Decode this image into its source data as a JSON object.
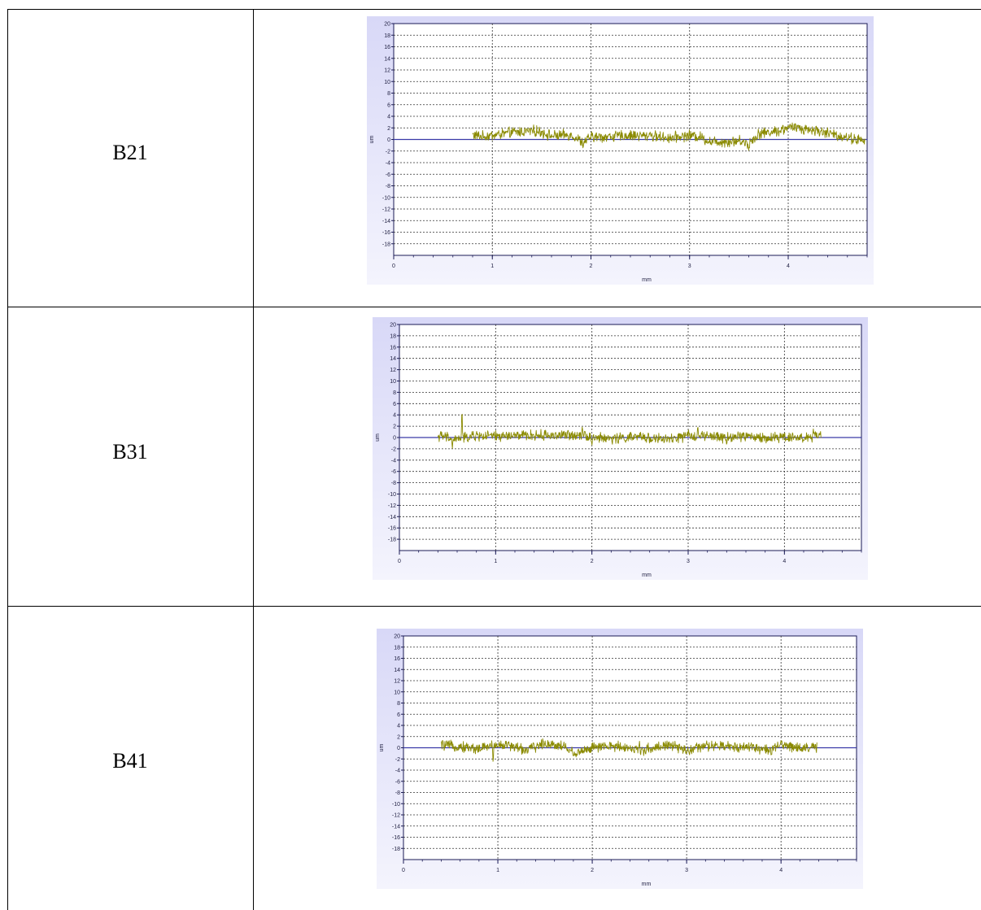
{
  "rows": [
    {
      "label": "B21",
      "chart": {
        "type": "line",
        "xlabel": "mm",
        "ylabel": "um",
        "xlim": [
          0,
          4.8
        ],
        "ylim": [
          -20,
          20
        ],
        "x_ticks": [
          0,
          1,
          2,
          3,
          4
        ],
        "y_ticks": [
          20,
          18,
          16,
          14,
          12,
          10,
          8,
          6,
          4,
          2,
          0,
          -2,
          -4,
          -6,
          -8,
          -10,
          -12,
          -14,
          -16,
          -18
        ],
        "grid": true,
        "reference_line": 0,
        "series": [
          {
            "color": "#8a8a00",
            "x_start": 0.8,
            "x_end": 4.78,
            "anchors": [
              [
                0.8,
                0.8
              ],
              [
                0.9,
                0.5
              ],
              [
                1.0,
                0.7
              ],
              [
                1.2,
                1.2
              ],
              [
                1.4,
                1.5
              ],
              [
                1.5,
                1.3
              ],
              [
                1.6,
                0.6
              ],
              [
                1.8,
                0.8
              ],
              [
                1.92,
                -0.5
              ],
              [
                2.0,
                0.4
              ],
              [
                2.2,
                0.5
              ],
              [
                2.4,
                0.7
              ],
              [
                2.6,
                0.6
              ],
              [
                2.8,
                0.3
              ],
              [
                3.0,
                0.7
              ],
              [
                3.1,
                0.5
              ],
              [
                3.2,
                -0.3
              ],
              [
                3.4,
                -0.4
              ],
              [
                3.5,
                -0.2
              ],
              [
                3.6,
                -0.7
              ],
              [
                3.7,
                1.0
              ],
              [
                3.9,
                1.5
              ],
              [
                4.0,
                2.0
              ],
              [
                4.1,
                2.0
              ],
              [
                4.3,
                1.5
              ],
              [
                4.5,
                0.7
              ],
              [
                4.7,
                0.0
              ],
              [
                4.78,
                -0.4
              ]
            ],
            "spikes": [
              [
                1.92,
                -1.6
              ],
              [
                2.6,
                1.3
              ],
              [
                3.6,
                -2.0
              ],
              [
                4.0,
                2.5
              ],
              [
                4.1,
                2.6
              ]
            ]
          }
        ]
      }
    },
    {
      "label": "B31",
      "chart": {
        "type": "line",
        "xlabel": "mm",
        "ylabel": "um",
        "xlim": [
          0,
          4.8
        ],
        "ylim": [
          -20,
          20
        ],
        "x_ticks": [
          0,
          1,
          2,
          3,
          4
        ],
        "y_ticks": [
          20,
          18,
          16,
          14,
          12,
          10,
          8,
          6,
          4,
          2,
          0,
          -2,
          -4,
          -6,
          -8,
          -10,
          -12,
          -14,
          -16,
          -18
        ],
        "grid": true,
        "reference_line": 0,
        "series": [
          {
            "color": "#8a8a00",
            "x_start": 0.4,
            "x_end": 4.38,
            "anchors": [
              [
                0.4,
                0.3
              ],
              [
                0.6,
                -0.3
              ],
              [
                0.8,
                0.3
              ],
              [
                1.0,
                0.2
              ],
              [
                1.2,
                0.3
              ],
              [
                1.5,
                0.4
              ],
              [
                1.8,
                0.4
              ],
              [
                1.9,
                0.6
              ],
              [
                2.0,
                0.0
              ],
              [
                2.2,
                -0.2
              ],
              [
                2.5,
                0.1
              ],
              [
                2.8,
                -0.4
              ],
              [
                3.0,
                0.3
              ],
              [
                3.2,
                0.2
              ],
              [
                3.4,
                0.0
              ],
              [
                3.6,
                0.3
              ],
              [
                3.8,
                -0.2
              ],
              [
                4.0,
                0.2
              ],
              [
                4.2,
                -0.1
              ],
              [
                4.38,
                0.3
              ]
            ],
            "spikes": [
              [
                0.65,
                5.6
              ],
              [
                0.55,
                -2.0
              ],
              [
                1.9,
                2.0
              ],
              [
                2.0,
                -1.5
              ],
              [
                3.1,
                2.3
              ],
              [
                3.4,
                -1.5
              ],
              [
                4.3,
                1.6
              ]
            ]
          }
        ]
      }
    },
    {
      "label": "B41",
      "chart": {
        "type": "line",
        "xlabel": "mm",
        "ylabel": "um",
        "xlim": [
          0,
          4.8
        ],
        "ylim": [
          -20,
          20
        ],
        "x_ticks": [
          0,
          1,
          2,
          3,
          4
        ],
        "y_ticks": [
          20,
          18,
          16,
          14,
          12,
          10,
          8,
          6,
          4,
          2,
          0,
          -2,
          -4,
          -6,
          -8,
          -10,
          -12,
          -14,
          -16,
          -18
        ],
        "grid": true,
        "reference_line": 0,
        "series": [
          {
            "color": "#8a8a00",
            "x_start": 0.4,
            "x_end": 4.38,
            "anchors": [
              [
                0.4,
                0.5
              ],
              [
                0.6,
                0.2
              ],
              [
                0.8,
                -0.2
              ],
              [
                0.95,
                0.5
              ],
              [
                1.1,
                0.5
              ],
              [
                1.3,
                -0.4
              ],
              [
                1.5,
                0.8
              ],
              [
                1.7,
                0.3
              ],
              [
                1.8,
                -1.0
              ],
              [
                2.0,
                0.0
              ],
              [
                2.3,
                0.3
              ],
              [
                2.5,
                -0.5
              ],
              [
                2.8,
                0.5
              ],
              [
                3.0,
                -0.5
              ],
              [
                3.2,
                0.3
              ],
              [
                3.5,
                0.2
              ],
              [
                3.7,
                0.2
              ],
              [
                3.9,
                -0.6
              ],
              [
                4.0,
                0.6
              ],
              [
                4.2,
                0.0
              ],
              [
                4.38,
                0.0
              ]
            ],
            "spikes": [
              [
                0.95,
                -3.2
              ],
              [
                1.8,
                -1.6
              ],
              [
                2.5,
                1.3
              ],
              [
                3.0,
                -1.0
              ],
              [
                4.0,
                1.3
              ]
            ]
          }
        ]
      }
    }
  ]
}
